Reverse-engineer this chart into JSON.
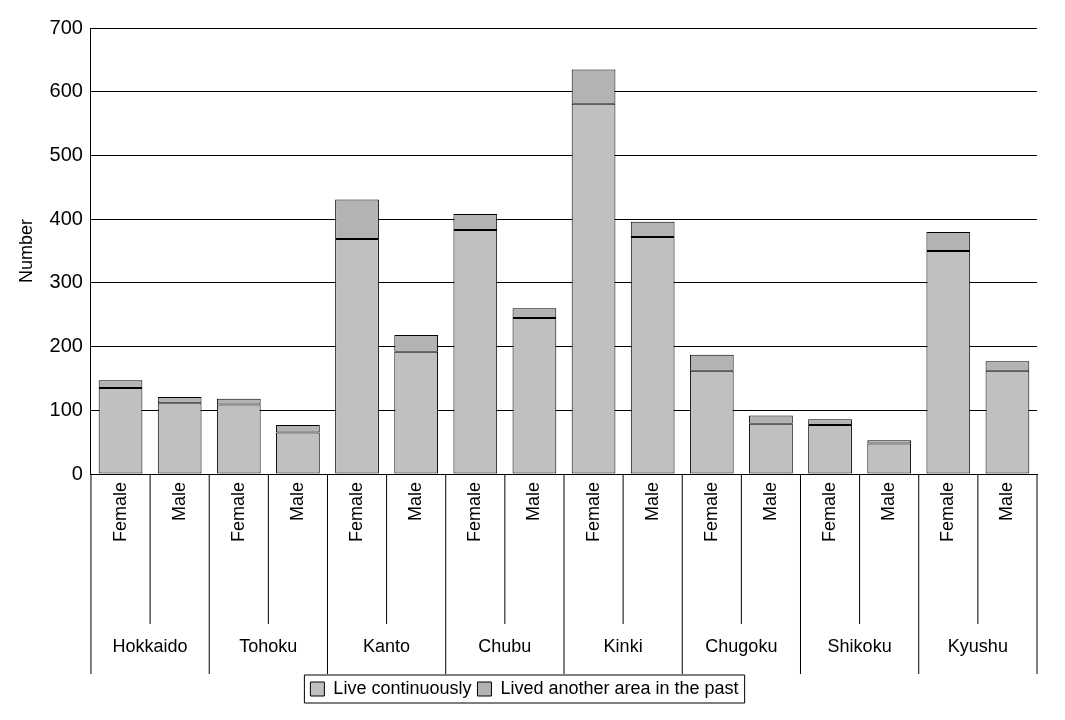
{
  "chart_data": {
    "type": "bar",
    "stacked": true,
    "ylabel": "Number",
    "categories": [
      "Female",
      "Male",
      "Female",
      "Male",
      "Female",
      "Male",
      "Female",
      "Male",
      "Female",
      "Male",
      "Female",
      "Male",
      "Female",
      "Male",
      "Female",
      "Male"
    ],
    "annotations": [
      "Hokkaido",
      "Tohoku",
      "Kanto",
      "Chubu",
      "Kinki",
      "Chugoku",
      "Shikoku",
      "Kyushu"
    ],
    "series": [
      {
        "name": "Live continuously",
        "color": "#c0c0c0",
        "values": [
          135,
          111,
          109,
          65,
          369,
          192,
          383,
          245,
          581,
          372,
          162,
          79,
          77,
          48,
          350,
          162
        ]
      },
      {
        "name": "Lived another area in the past",
        "color": "#b3b3b3",
        "values": [
          12,
          10,
          9,
          12,
          62,
          26,
          25,
          15,
          54,
          24,
          25,
          13,
          9,
          5,
          30,
          15
        ]
      }
    ],
    "ylim": [
      0,
      700
    ],
    "yticks": [
      0,
      100,
      200,
      300,
      400,
      500,
      600,
      700
    ],
    "grid": "y",
    "legend": "bottom"
  }
}
